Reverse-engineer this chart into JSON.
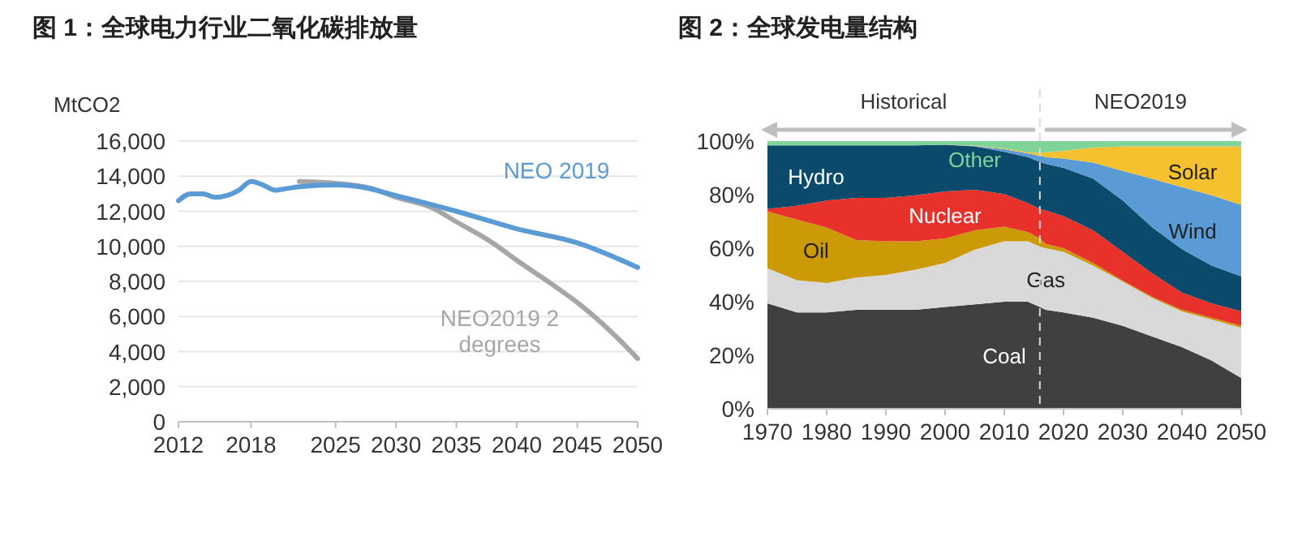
{
  "chart_data": [
    {
      "type": "line",
      "title": "图 1：全球电力行业二氧化碳排放量",
      "ylabel": "MtCO2",
      "xlim": [
        2012,
        2050
      ],
      "xticks": [
        2012,
        2018,
        2025,
        2030,
        2035,
        2040,
        2045,
        2050
      ],
      "ylim": [
        0,
        16000
      ],
      "yticks": [
        {
          "value": 0,
          "label": "0"
        },
        {
          "value": 2000,
          "label": "2,000"
        },
        {
          "value": 4000,
          "label": "4,000"
        },
        {
          "value": 6000,
          "label": "6,000"
        },
        {
          "value": 8000,
          "label": "8,000"
        },
        {
          "value": 10000,
          "label": "10,000"
        },
        {
          "value": 12000,
          "label": "12,000"
        },
        {
          "value": 14000,
          "label": "14,000"
        },
        {
          "value": 16000,
          "label": "16,000"
        }
      ],
      "grid": "y",
      "legend": false,
      "marker": "none",
      "line_style": "solid",
      "series": [
        {
          "name": "NEO2019 2 degrees",
          "color": "#a6a6a6",
          "x": [
            2022,
            2025,
            2028,
            2030,
            2033,
            2035,
            2038,
            2040,
            2043,
            2045,
            2048,
            2050
          ],
          "values": [
            13700,
            13600,
            13300,
            12800,
            12200,
            11400,
            10200,
            9200,
            7800,
            6800,
            5000,
            3600
          ]
        },
        {
          "name": "NEO 2019",
          "color": "#5b9bd5",
          "x": [
            2012,
            2013,
            2014,
            2015,
            2016,
            2017,
            2018,
            2019,
            2020,
            2021,
            2022,
            2025,
            2027,
            2030,
            2035,
            2040,
            2045,
            2050
          ],
          "values": [
            12600,
            13000,
            13000,
            12800,
            12900,
            13200,
            13700,
            13500,
            13200,
            13300,
            13400,
            13500,
            13400,
            12900,
            12000,
            11000,
            10200,
            8800
          ]
        }
      ]
    },
    {
      "type": "area",
      "stacked": true,
      "title": "图 2：全球发电量结构",
      "annotations": [
        "Historical",
        "NEO2019"
      ],
      "x": [
        1970,
        1975,
        1980,
        1985,
        1990,
        1995,
        2000,
        2005,
        2010,
        2014,
        2016,
        2017,
        2020,
        2025,
        2030,
        2035,
        2040,
        2045,
        2050
      ],
      "xlim": [
        1970,
        2050
      ],
      "xticks": [
        1970,
        1980,
        1990,
        2000,
        2010,
        2020,
        2030,
        2040,
        2050
      ],
      "ylim": [
        0,
        100
      ],
      "yticks": [
        {
          "value": 0,
          "label": "0%"
        },
        {
          "value": 20,
          "label": "20%"
        },
        {
          "value": 40,
          "label": "40%"
        },
        {
          "value": 60,
          "label": "60%"
        },
        {
          "value": 80,
          "label": "80%"
        },
        {
          "value": 100,
          "label": "100%"
        }
      ],
      "grid": false,
      "legend": false,
      "ref_lines": [
        {
          "axis": "x",
          "value": 2016,
          "color": "#d9d9d9",
          "line_style": "dashed"
        }
      ],
      "series": [
        {
          "name": "Coal",
          "color": "#404040",
          "values": [
            39.4,
            36,
            36,
            37,
            37,
            37,
            38,
            39,
            40,
            40,
            38,
            37,
            36,
            34,
            31,
            27,
            23,
            18,
            11.5
          ]
        },
        {
          "name": "Gas",
          "color": "#d9d9d9",
          "values": [
            13.1,
            12,
            11,
            12,
            13,
            15,
            16.5,
            20.5,
            22.6,
            22.6,
            22.6,
            23,
            22.6,
            19.5,
            16.5,
            14.4,
            13.4,
            15.3,
            18.8
          ]
        },
        {
          "name": "Oil",
          "color": "#cc9a06",
          "values": [
            21.2,
            22.7,
            20.7,
            14,
            12.6,
            10.6,
            9.1,
            7.2,
            5.4,
            3.4,
            3,
            1.6,
            1.4,
            1,
            0.4,
            0.4,
            0.6,
            0.7,
            0.7
          ]
        },
        {
          "name": "Nuclear",
          "color": "#e8312a",
          "values": [
            1,
            5.1,
            10.1,
            15.8,
            16.2,
            17.2,
            17.6,
            15.1,
            12.2,
            10.8,
            11.1,
            12.5,
            12,
            12.2,
            10.7,
            8.7,
            6.4,
            5.4,
            5.4
          ]
        },
        {
          "name": "Hydro",
          "color": "#0b4a6b",
          "values": [
            23.7,
            22.6,
            20.6,
            19.6,
            19.6,
            18.6,
            17.4,
            16.2,
            15.8,
            17.2,
            17.6,
            17.4,
            18,
            19.3,
            19.2,
            17.2,
            16.2,
            14.1,
            13.1
          ]
        },
        {
          "name": "Wind",
          "color": "#5b9bd5",
          "values": [
            0,
            0,
            0,
            0,
            0,
            0,
            0,
            0.2,
            1,
            1.4,
            2.2,
            2.5,
            3.5,
            6,
            11.1,
            18.2,
            23.2,
            26.3,
            26.7
          ]
        },
        {
          "name": "Solar",
          "color": "#f5c12e",
          "values": [
            0,
            0,
            0,
            0,
            0,
            0,
            0,
            0.1,
            0.3,
            0.4,
            1.1,
            1.8,
            2.9,
            5.6,
            9.1,
            12.1,
            15.2,
            18.2,
            21.8
          ]
        },
        {
          "name": "Other",
          "color": "#7fd49a",
          "values": [
            1.6,
            1.6,
            1.6,
            1.6,
            1.6,
            1.6,
            1.4,
            1.7,
            2.7,
            4.2,
            4.4,
            4.2,
            3.6,
            2.4,
            2,
            2,
            2,
            2,
            2
          ]
        }
      ]
    }
  ]
}
